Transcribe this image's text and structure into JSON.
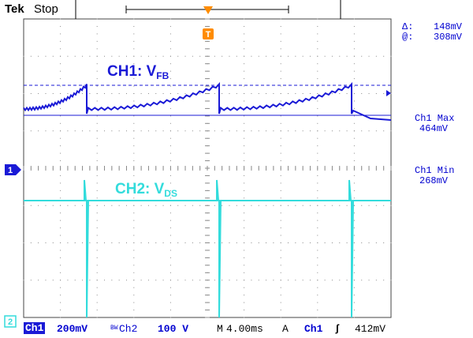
{
  "header": {
    "brand": "Tek",
    "status": "Stop"
  },
  "screen": {
    "label_ch1_main": "CH1: V",
    "label_ch1_sub": "FB",
    "label_ch2_main": "CH2: V",
    "label_ch2_sub": "DS",
    "ch1_marker": "1",
    "ch2_marker": "2",
    "trigger_marker": "T"
  },
  "cursor_readout": {
    "delta_symbol": "Δ:",
    "delta_value": "148mV",
    "at_symbol": "@:",
    "at_value": "308mV"
  },
  "measurements": [
    {
      "label": "Ch1 Max",
      "value": "464mV"
    },
    {
      "label": "Ch1 Min",
      "value": "268mV"
    }
  ],
  "footer": {
    "ch1_tag": "Ch1",
    "ch1_scale": "200mV",
    "bw_tag": "BW",
    "ch2_tag": "Ch2",
    "ch2_scale": "100 V",
    "timebase_tag": "M",
    "timebase": "4.00ms",
    "trigger_mode": "A",
    "trigger_source": "Ch1",
    "trigger_slope": "ʃ",
    "trigger_level": "412mV"
  },
  "colors": {
    "ch1": "#1a1ad6",
    "ch2": "#33dcdc",
    "trigger": "#ff8c00",
    "grid": "#9a9a9a",
    "text_blue": "#0000d0"
  }
}
